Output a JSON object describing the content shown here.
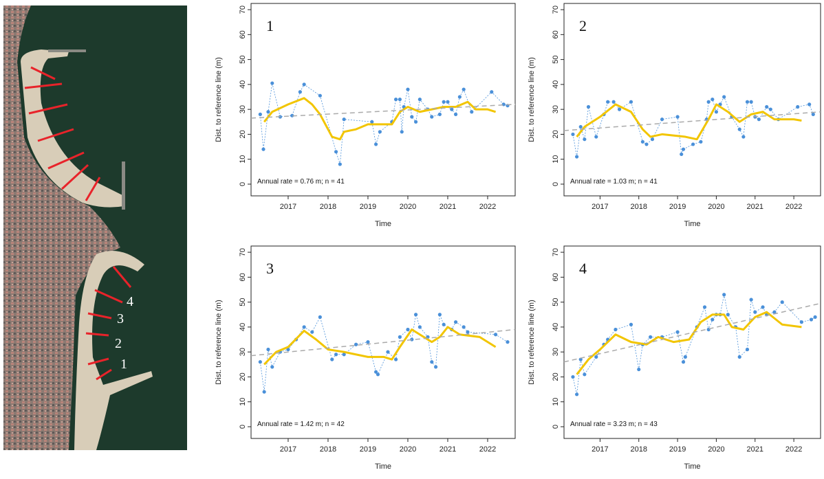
{
  "map": {
    "labels": [
      "1",
      "2",
      "3",
      "4"
    ]
  },
  "chart_data": [
    {
      "type": "line",
      "panel_label": "1",
      "annotation": "Annual rate = 0.76 m; n =  41",
      "xlabel": "Time",
      "ylabel": "Dist. to reference line (m)",
      "xlim": [
        2016.07,
        2022.69
      ],
      "ylim": [
        -4.7,
        72.5
      ],
      "xticks": [
        2017,
        2018,
        2019,
        2020,
        2021,
        2022
      ],
      "yticks": [
        0,
        10,
        20,
        30,
        40,
        50,
        60,
        70
      ],
      "series": [
        {
          "color": "#4a90d9",
          "markers": true,
          "dash": "2,2",
          "width": 0.8,
          "x": [
            2016.3,
            2016.38,
            2016.5,
            2016.6,
            2016.8,
            2017.1,
            2017.3,
            2017.4,
            2017.8,
            2018.2,
            2018.3,
            2018.4,
            2019.1,
            2019.2,
            2019.3,
            2019.6,
            2019.7,
            2019.8,
            2019.85,
            2019.9,
            2020.0,
            2020.1,
            2020.2,
            2020.3,
            2020.5,
            2020.6,
            2020.8,
            2020.9,
            2021.0,
            2021.1,
            2021.2,
            2021.3,
            2021.4,
            2021.6,
            2022.1,
            2022.4,
            2022.5
          ],
          "values": [
            28,
            14,
            29,
            40.5,
            27,
            27.5,
            37,
            40,
            35.5,
            13,
            8,
            26,
            25,
            16,
            21,
            25,
            34,
            34,
            21,
            31,
            38,
            27,
            25,
            34,
            30,
            27,
            28,
            33,
            33,
            30,
            28,
            35,
            38,
            29,
            37,
            32,
            31.5
          ]
        },
        {
          "color": "#f2c500",
          "markers": false,
          "width": 3,
          "x": [
            2016.4,
            2016.6,
            2017,
            2017.4,
            2017.6,
            2017.8,
            2018.1,
            2018.3,
            2018.4,
            2018.7,
            2019.0,
            2019.3,
            2019.6,
            2019.8,
            2020.0,
            2020.3,
            2020.6,
            2020.9,
            2021.2,
            2021.5,
            2021.7,
            2022.0,
            2022.2
          ],
          "values": [
            25,
            29,
            32,
            34.5,
            32,
            28,
            19,
            18,
            21,
            22,
            24,
            24,
            24,
            29,
            31,
            29,
            30,
            31,
            31,
            33,
            30,
            30,
            29
          ]
        },
        {
          "color": "#aaaaaa",
          "markers": false,
          "dash": "7,5",
          "width": 1.5,
          "x": [
            2016.07,
            2022.69
          ],
          "values": [
            26.5,
            32
          ]
        }
      ]
    },
    {
      "type": "line",
      "panel_label": "2",
      "annotation": "Annual rate = 1.03 m; n =  41",
      "xlabel": "Time",
      "ylabel": "Dist. to reference line (m)",
      "xlim": [
        2016.07,
        2022.69
      ],
      "ylim": [
        -4.7,
        72.5
      ],
      "xticks": [
        2017,
        2018,
        2019,
        2020,
        2021,
        2022
      ],
      "yticks": [
        0,
        10,
        20,
        30,
        40,
        50,
        60,
        70
      ],
      "series": [
        {
          "color": "#4a90d9",
          "markers": true,
          "dash": "2,2",
          "width": 0.8,
          "x": [
            2016.3,
            2016.4,
            2016.5,
            2016.6,
            2016.7,
            2016.9,
            2017.1,
            2017.2,
            2017.35,
            2017.5,
            2017.8,
            2018.1,
            2018.2,
            2018.35,
            2018.6,
            2019.0,
            2019.1,
            2019.15,
            2019.4,
            2019.6,
            2019.75,
            2019.8,
            2019.9,
            2020.0,
            2020.1,
            2020.2,
            2020.4,
            2020.6,
            2020.7,
            2020.8,
            2020.9,
            2021.0,
            2021.1,
            2021.3,
            2021.4,
            2021.6,
            2022.1,
            2022.4,
            2022.5
          ],
          "values": [
            20,
            11,
            23,
            18,
            31,
            19,
            28,
            33,
            33,
            30,
            33,
            17,
            16,
            18,
            26,
            27,
            12,
            14,
            16,
            17,
            26,
            33,
            34,
            29,
            32,
            35,
            27,
            22,
            19,
            33,
            33,
            27,
            26,
            31,
            30,
            26,
            31,
            32,
            28
          ]
        },
        {
          "color": "#f2c500",
          "markers": false,
          "width": 3,
          "x": [
            2016.4,
            2016.6,
            2017,
            2017.4,
            2017.8,
            2018.1,
            2018.3,
            2018.6,
            2019.2,
            2019.5,
            2019.8,
            2020.0,
            2020.3,
            2020.6,
            2020.9,
            2021.2,
            2021.5,
            2022.0,
            2022.2
          ],
          "values": [
            19,
            23,
            27,
            32,
            29,
            22,
            19,
            20,
            19,
            18,
            26,
            32,
            29,
            25,
            28,
            29,
            26,
            26,
            25.5
          ]
        },
        {
          "color": "#aaaaaa",
          "markers": false,
          "dash": "7,5",
          "width": 1.5,
          "x": [
            2016.07,
            2022.69
          ],
          "values": [
            21.5,
            29
          ]
        }
      ]
    },
    {
      "type": "line",
      "panel_label": "3",
      "annotation": "Annual rate = 1.42 m; n =  42",
      "xlabel": "Time",
      "ylabel": "Dist. to reference line (m)",
      "xlim": [
        2016.07,
        2022.69
      ],
      "ylim": [
        -4.7,
        72.5
      ],
      "xticks": [
        2017,
        2018,
        2019,
        2020,
        2021,
        2022
      ],
      "yticks": [
        0,
        10,
        20,
        30,
        40,
        50,
        60,
        70
      ],
      "series": [
        {
          "color": "#4a90d9",
          "markers": true,
          "dash": "2,2",
          "width": 0.8,
          "x": [
            2016.3,
            2016.4,
            2016.5,
            2016.6,
            2016.8,
            2017.0,
            2017.2,
            2017.4,
            2017.6,
            2017.8,
            2018.1,
            2018.2,
            2018.4,
            2018.7,
            2019.0,
            2019.2,
            2019.25,
            2019.5,
            2019.7,
            2019.8,
            2020.0,
            2020.1,
            2020.2,
            2020.3,
            2020.5,
            2020.6,
            2020.7,
            2020.8,
            2020.9,
            2021.1,
            2021.2,
            2021.4,
            2021.5,
            2022.2,
            2022.5
          ],
          "values": [
            26,
            14,
            31,
            24,
            30,
            31,
            35,
            40,
            38,
            44,
            27,
            29,
            29,
            33,
            34,
            22,
            21,
            30,
            27,
            36,
            39,
            35,
            45,
            40,
            36,
            26,
            24,
            45,
            41,
            39,
            42,
            40,
            38,
            37,
            34
          ]
        },
        {
          "color": "#f2c500",
          "markers": false,
          "width": 3,
          "x": [
            2016.4,
            2016.7,
            2017.0,
            2017.4,
            2017.7,
            2018.0,
            2018.4,
            2019.0,
            2019.4,
            2019.6,
            2019.8,
            2020.1,
            2020.4,
            2020.6,
            2020.8,
            2021.0,
            2021.3,
            2021.8,
            2022.2
          ],
          "values": [
            25,
            30,
            32,
            38.5,
            35,
            31,
            30,
            28,
            28,
            27,
            32,
            39,
            36,
            34,
            36,
            40,
            37,
            36,
            32
          ]
        },
        {
          "color": "#aaaaaa",
          "markers": false,
          "dash": "7,5",
          "width": 1.5,
          "x": [
            2016.07,
            2022.69
          ],
          "values": [
            28.5,
            39
          ]
        }
      ]
    },
    {
      "type": "line",
      "panel_label": "4",
      "annotation": "Annual rate = 3.23 m; n =  43",
      "xlabel": "Time",
      "ylabel": "Dist. to reference line (m)",
      "xlim": [
        2016.07,
        2022.69
      ],
      "ylim": [
        -4.7,
        72.5
      ],
      "xticks": [
        2017,
        2018,
        2019,
        2020,
        2021,
        2022
      ],
      "yticks": [
        0,
        10,
        20,
        30,
        40,
        50,
        60,
        70
      ],
      "series": [
        {
          "color": "#4a90d9",
          "markers": true,
          "dash": "2,2",
          "width": 0.8,
          "x": [
            2016.3,
            2016.4,
            2016.5,
            2016.6,
            2016.9,
            2017.1,
            2017.2,
            2017.4,
            2017.8,
            2018.0,
            2018.1,
            2018.3,
            2018.6,
            2019.0,
            2019.15,
            2019.2,
            2019.5,
            2019.7,
            2019.8,
            2019.9,
            2020.0,
            2020.1,
            2020.2,
            2020.3,
            2020.5,
            2020.6,
            2020.8,
            2020.9,
            2021.0,
            2021.2,
            2021.3,
            2021.5,
            2021.7,
            2022.2,
            2022.45,
            2022.55
          ],
          "values": [
            20,
            13,
            27,
            21,
            28,
            33,
            35,
            39,
            41,
            23,
            33,
            36,
            36,
            38,
            26,
            28,
            40,
            48,
            39,
            43,
            45,
            45,
            53,
            45,
            40,
            28,
            31,
            51,
            46,
            48,
            45,
            46,
            50,
            42,
            43,
            44
          ]
        },
        {
          "color": "#f2c500",
          "markers": false,
          "width": 3,
          "x": [
            2016.4,
            2016.7,
            2017.0,
            2017.4,
            2017.8,
            2018.2,
            2018.5,
            2018.9,
            2019.3,
            2019.6,
            2019.9,
            2020.2,
            2020.4,
            2020.7,
            2021.0,
            2021.3,
            2021.7,
            2022.2
          ],
          "values": [
            21,
            27,
            31,
            37,
            34,
            33,
            36,
            34,
            35,
            42,
            45,
            45,
            40,
            39,
            44,
            46,
            41,
            40
          ]
        },
        {
          "color": "#aaaaaa",
          "markers": false,
          "dash": "7,5",
          "width": 1.5,
          "x": [
            2016.07,
            2022.69
          ],
          "values": [
            26,
            49.5
          ]
        }
      ]
    }
  ]
}
